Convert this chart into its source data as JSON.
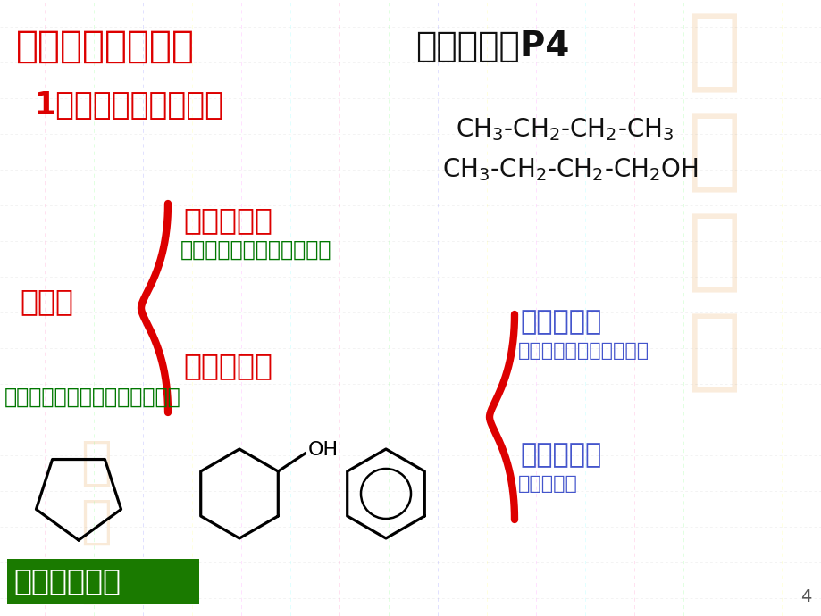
{
  "bg_color": "#ffffff",
  "title_left": "二、有机物的分类",
  "title_right": "分类方法：P4",
  "subtitle": "1、按碳的骨架分类。",
  "youjiwu": "有机物",
  "lian_label": "链状化合物",
  "lian_sub": "（碳原子相互连接成链状）",
  "huan_label": "环状化合物",
  "huan_sub": "（含有碳原子组成的环状结构）",
  "zhi_label": "脂环化合物",
  "zhi_sub": "（有环状结构，不含苯环",
  "fang_label": "芳香化合物",
  "fang_sub": "（含苯环）",
  "bottom_label": "树状分类法！",
  "page_num": "4",
  "red": "#dd0000",
  "dark_green": "#007700",
  "blue": "#4455cc",
  "black": "#111111",
  "green_box": "#1a7a00",
  "grid_color": "#cccccc",
  "grid_v_colors": [
    "#ff99cc",
    "#99ff99",
    "#9999ff",
    "#ffff99",
    "#ff99ff",
    "#99ffff"
  ],
  "watermark_color": "#e8a050"
}
